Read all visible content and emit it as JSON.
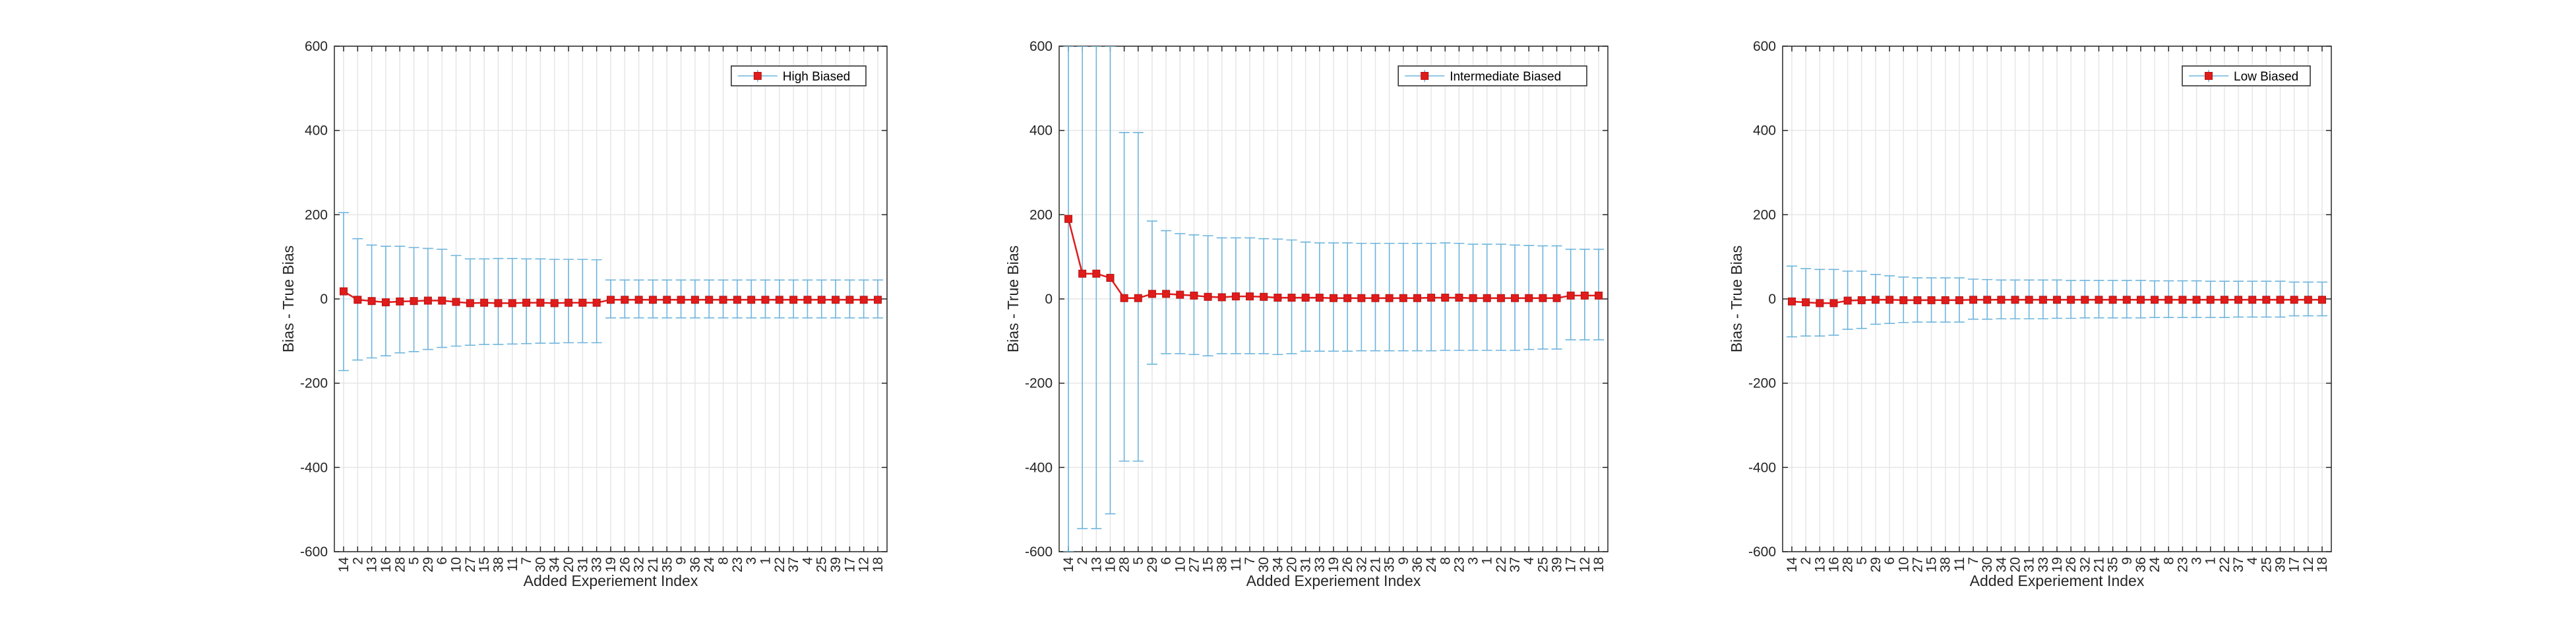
{
  "chart_data": [
    {
      "type": "line",
      "error_bars": true,
      "xlabel": "Added Experiement Index",
      "ylabel": "Bias - True Bias",
      "ylim": [
        -600,
        600
      ],
      "yticks": [
        -600,
        -400,
        -200,
        0,
        200,
        400,
        600
      ],
      "grid": true,
      "legend_position": "top-right",
      "categories": [
        "14",
        "2",
        "13",
        "16",
        "28",
        "5",
        "29",
        "6",
        "10",
        "27",
        "15",
        "38",
        "11",
        "7",
        "30",
        "34",
        "20",
        "31",
        "33",
        "19",
        "26",
        "32",
        "21",
        "35",
        "9",
        "36",
        "24",
        "8",
        "23",
        "3",
        "1",
        "22",
        "37",
        "4",
        "25",
        "39",
        "17",
        "12",
        "18"
      ],
      "series": [
        {
          "name": "High Biased",
          "values": [
            18,
            -2,
            -5,
            -8,
            -6,
            -5,
            -4,
            -4,
            -7,
            -10,
            -9,
            -10,
            -10,
            -9,
            -9,
            -10,
            -9,
            -9,
            -9,
            -2,
            -2,
            -2,
            -2,
            -2,
            -2,
            -2,
            -2,
            -2,
            -2,
            -2,
            -2,
            -2,
            -2,
            -2,
            -2,
            -2,
            -2,
            -2,
            -2
          ],
          "lower": [
            -170,
            -145,
            -140,
            -135,
            -128,
            -125,
            -120,
            -115,
            -112,
            -110,
            -108,
            -108,
            -107,
            -106,
            -105,
            -105,
            -104,
            -104,
            -104,
            -45,
            -45,
            -45,
            -45,
            -45,
            -45,
            -45,
            -45,
            -45,
            -45,
            -45,
            -45,
            -45,
            -45,
            -45,
            -45,
            -45,
            -45,
            -45,
            -45
          ],
          "upper": [
            205,
            143,
            128,
            125,
            125,
            122,
            120,
            118,
            103,
            95,
            95,
            96,
            96,
            95,
            95,
            94,
            94,
            94,
            93,
            45,
            45,
            45,
            45,
            45,
            45,
            45,
            45,
            45,
            45,
            45,
            45,
            45,
            45,
            45,
            45,
            45,
            45,
            45,
            45
          ]
        }
      ],
      "line_color": "#6fb5dc",
      "marker_color": "#e01b1b"
    },
    {
      "type": "line",
      "error_bars": true,
      "xlabel": "Added Experiement Index",
      "ylabel": "Bias - True Bias",
      "ylim": [
        -600,
        600
      ],
      "yticks": [
        -600,
        -400,
        -200,
        0,
        200,
        400,
        600
      ],
      "grid": true,
      "legend_position": "top-right",
      "categories": [
        "14",
        "2",
        "13",
        "16",
        "28",
        "5",
        "29",
        "6",
        "10",
        "27",
        "15",
        "38",
        "11",
        "7",
        "30",
        "34",
        "20",
        "31",
        "33",
        "19",
        "26",
        "32",
        "21",
        "35",
        "9",
        "36",
        "24",
        "8",
        "23",
        "3",
        "1",
        "22",
        "37",
        "4",
        "25",
        "39",
        "17",
        "12",
        "18"
      ],
      "series": [
        {
          "name": "Intermediate Biased",
          "values": [
            190,
            60,
            60,
            50,
            2,
            2,
            12,
            12,
            10,
            8,
            5,
            4,
            6,
            6,
            5,
            3,
            3,
            3,
            3,
            2,
            2,
            2,
            2,
            2,
            2,
            2,
            3,
            3,
            3,
            2,
            2,
            2,
            2,
            2,
            2,
            2,
            8,
            8,
            8
          ],
          "lower": [
            -600,
            -545,
            -545,
            -510,
            -385,
            -385,
            -155,
            -130,
            -130,
            -132,
            -135,
            -130,
            -130,
            -130,
            -130,
            -132,
            -130,
            -124,
            -124,
            -124,
            -124,
            -123,
            -123,
            -123,
            -123,
            -123,
            -123,
            -122,
            -122,
            -122,
            -122,
            -122,
            -122,
            -120,
            -119,
            -119,
            -97,
            -97,
            -97
          ],
          "upper": [
            600,
            600,
            600,
            600,
            395,
            395,
            185,
            162,
            155,
            152,
            150,
            145,
            145,
            145,
            143,
            142,
            140,
            135,
            133,
            133,
            133,
            132,
            132,
            132,
            132,
            132,
            132,
            133,
            132,
            130,
            130,
            130,
            128,
            127,
            126,
            126,
            118,
            118,
            118
          ]
        }
      ],
      "line_color": "#6fb5dc",
      "marker_color": "#e01b1b"
    },
    {
      "type": "line",
      "error_bars": true,
      "xlabel": "Added Experiement Index",
      "ylabel": "Bias - True Bias",
      "ylim": [
        -600,
        600
      ],
      "yticks": [
        -600,
        -400,
        -200,
        0,
        200,
        400,
        600
      ],
      "grid": true,
      "legend_position": "top-right",
      "categories": [
        "14",
        "2",
        "13",
        "16",
        "28",
        "5",
        "29",
        "6",
        "10",
        "27",
        "15",
        "38",
        "11",
        "7",
        "30",
        "34",
        "20",
        "31",
        "33",
        "19",
        "26",
        "32",
        "21",
        "35",
        "9",
        "36",
        "24",
        "8",
        "23",
        "3",
        "1",
        "22",
        "37",
        "4",
        "25",
        "39",
        "17",
        "12",
        "18"
      ],
      "series": [
        {
          "name": "Low Biased",
          "values": [
            -6,
            -8,
            -10,
            -10,
            -4,
            -3,
            -2,
            -2,
            -3,
            -3,
            -3,
            -3,
            -3,
            -2,
            -2,
            -2,
            -2,
            -2,
            -2,
            -2,
            -2,
            -2,
            -2,
            -2,
            -2,
            -2,
            -2,
            -2,
            -2,
            -2,
            -2,
            -2,
            -2,
            -2,
            -2,
            -2,
            -2,
            -2,
            -2
          ],
          "lower": [
            -90,
            -88,
            -88,
            -86,
            -72,
            -70,
            -60,
            -58,
            -56,
            -55,
            -55,
            -55,
            -55,
            -48,
            -48,
            -47,
            -47,
            -47,
            -47,
            -46,
            -46,
            -45,
            -45,
            -45,
            -45,
            -45,
            -44,
            -44,
            -44,
            -44,
            -44,
            -44,
            -43,
            -43,
            -43,
            -43,
            -40,
            -40,
            -40
          ],
          "upper": [
            78,
            72,
            70,
            70,
            66,
            66,
            58,
            55,
            52,
            50,
            50,
            50,
            50,
            47,
            46,
            45,
            45,
            45,
            45,
            45,
            44,
            44,
            44,
            44,
            44,
            44,
            43,
            43,
            43,
            43,
            42,
            42,
            42,
            42,
            42,
            42,
            40,
            40,
            40
          ]
        }
      ],
      "line_color": "#6fb5dc",
      "marker_color": "#e01b1b"
    }
  ]
}
